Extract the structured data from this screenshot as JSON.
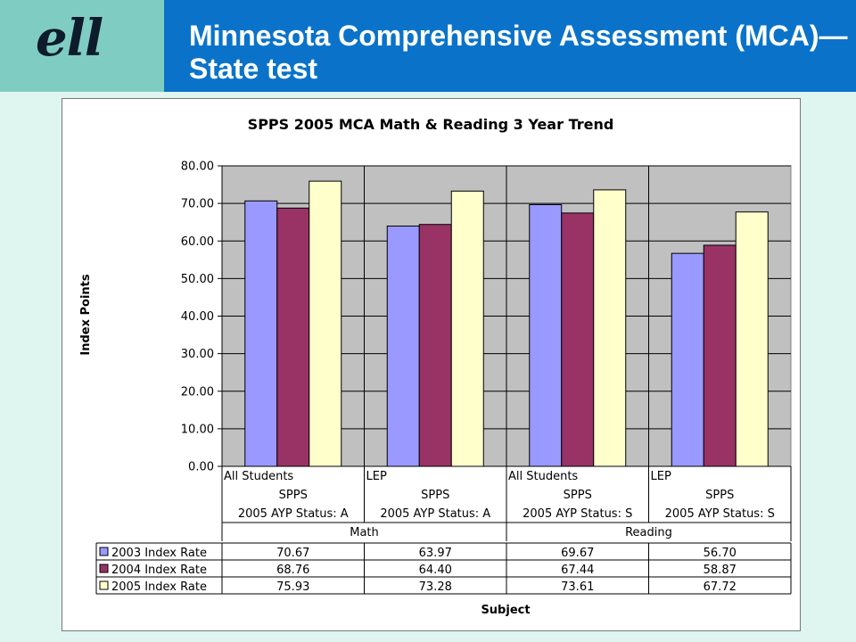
{
  "logo": {
    "text": "ell"
  },
  "header": {
    "title": "Minnesota Comprehensive Assessment (MCA)—State test"
  },
  "colors": {
    "header_bg": "#0a73c9",
    "logo_bg": "#7fcdc2",
    "page_bg": "#dff5f0",
    "plot_bg": "#c0c0c0"
  },
  "chart_data": {
    "type": "bar",
    "title": "SPPS 2005 MCA Math & Reading 3 Year Trend",
    "xlabel": "Subject",
    "ylabel": "Index Points",
    "ylim": [
      0,
      80
    ],
    "y_ticks": [
      "0.00",
      "10.00",
      "20.00",
      "30.00",
      "40.00",
      "50.00",
      "60.00",
      "70.00",
      "80.00"
    ],
    "grid": true,
    "legend": "data-table",
    "categories": [
      {
        "group": "All Students",
        "district": "SPPS",
        "status": "2005 AYP Status: A",
        "subject": "Math"
      },
      {
        "group": "LEP",
        "district": "SPPS",
        "status": "2005 AYP Status: A",
        "subject": "Math"
      },
      {
        "group": "All Students",
        "district": "SPPS",
        "status": "2005 AYP Status: S",
        "subject": "Reading"
      },
      {
        "group": "LEP",
        "district": "SPPS",
        "status": "2005 AYP Status: S",
        "subject": "Reading"
      }
    ],
    "subjects": [
      "Math",
      "Reading"
    ],
    "series": [
      {
        "name": "2003 Index Rate",
        "color": "#9999ff",
        "values": [
          70.67,
          63.97,
          69.67,
          56.7
        ],
        "labels": [
          "70.67",
          "63.97",
          "69.67",
          "56.70"
        ]
      },
      {
        "name": "2004 Index Rate",
        "color": "#993366",
        "values": [
          68.76,
          64.4,
          67.44,
          58.87
        ],
        "labels": [
          "68.76",
          "64.40",
          "67.44",
          "58.87"
        ]
      },
      {
        "name": "2005 Index Rate",
        "color": "#ffffcc",
        "values": [
          75.93,
          73.28,
          73.61,
          67.72
        ],
        "labels": [
          "75.93",
          "73.28",
          "73.61",
          "67.72"
        ]
      }
    ]
  }
}
